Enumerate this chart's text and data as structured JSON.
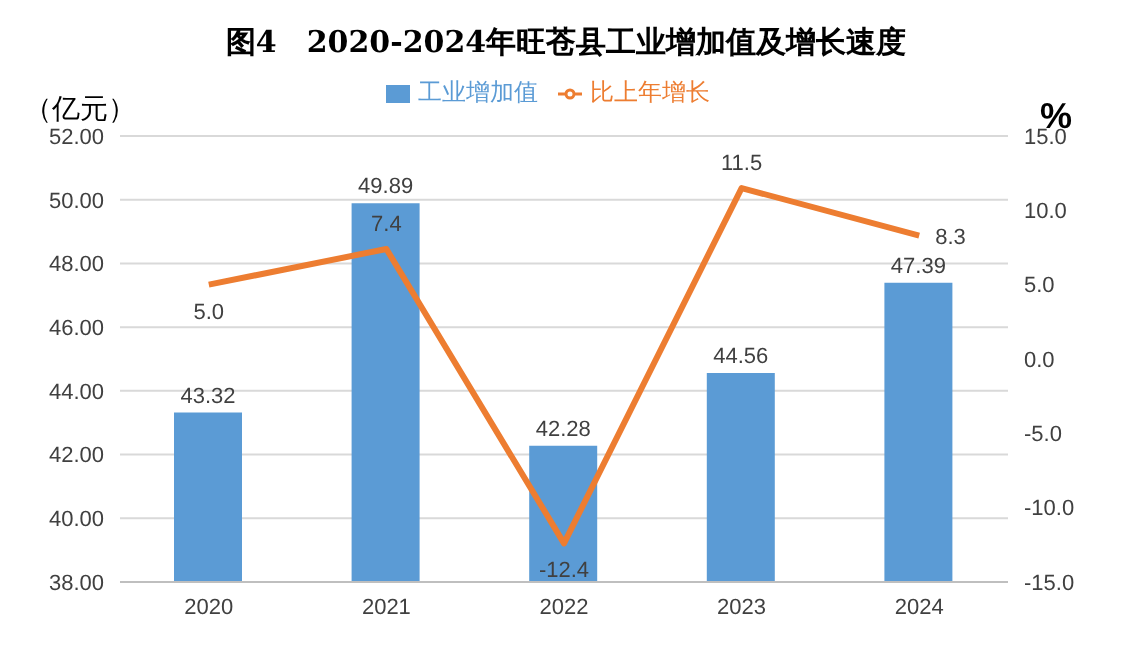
{
  "chart_data": {
    "type": "bar",
    "title": "图4　2020-2024年旺苍县工业增加值及增长速度",
    "ylabel": "（亿元）",
    "y2label": "%",
    "categories": [
      "2020",
      "2021",
      "2022",
      "2023",
      "2024"
    ],
    "series": [
      {
        "name": "工业增加值",
        "color": "#5b9bd5",
        "values": [
          43.32,
          49.89,
          42.28,
          44.56,
          47.39
        ],
        "value_labels": [
          "43.32",
          "49.89",
          "42.28",
          "44.56",
          "47.39"
        ]
      },
      {
        "name": "比上年增长",
        "type": "line",
        "axis": "y2",
        "color": "#ed7d31",
        "values": [
          5.0,
          7.4,
          -12.4,
          11.5,
          8.3
        ],
        "value_labels": [
          "5.0",
          "7.4",
          "-12.4",
          "11.5",
          "8.3"
        ]
      }
    ],
    "ylim": [
      38,
      52
    ],
    "yticks": [
      {
        "value": 38,
        "label": "38.00"
      },
      {
        "value": 40,
        "label": "40.00"
      },
      {
        "value": 42,
        "label": "42.00"
      },
      {
        "value": 44,
        "label": "44.00"
      },
      {
        "value": 46,
        "label": "46.00"
      },
      {
        "value": 48,
        "label": "48.00"
      },
      {
        "value": 50,
        "label": "50.00"
      },
      {
        "value": 52,
        "label": "52.00"
      }
    ],
    "y2lim": [
      -15,
      15
    ],
    "y2ticks": [
      {
        "value": -15,
        "label": "-15.0"
      },
      {
        "value": -10,
        "label": "-10.0"
      },
      {
        "value": -5,
        "label": "-5.0"
      },
      {
        "value": 0,
        "label": "0.0"
      },
      {
        "value": 5,
        "label": "5.0"
      },
      {
        "value": 10,
        "label": "10.0"
      },
      {
        "value": 15,
        "label": "15.0"
      }
    ],
    "grid": "y",
    "legend": "top",
    "marker": "none",
    "line_style": "solid"
  }
}
